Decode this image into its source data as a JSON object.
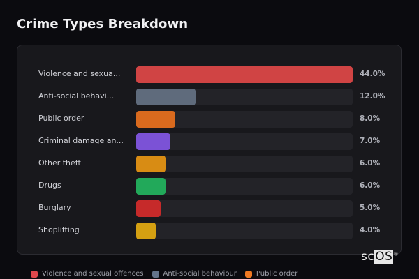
{
  "title": "Crime Types Breakdown",
  "chart_data": {
    "type": "bar",
    "orientation": "horizontal",
    "title": "Crime Types Breakdown",
    "categories": [
      "Violence and sexual offences",
      "Anti-social behaviour",
      "Public order",
      "Criminal damage and arson",
      "Other theft",
      "Drugs",
      "Burglary",
      "Shoplifting"
    ],
    "display_labels": [
      "Violence and sexua...",
      "Anti-social behavi...",
      "Public order",
      "Criminal damage an...",
      "Other theft",
      "Drugs",
      "Burglary",
      "Shoplifting"
    ],
    "values": [
      44.0,
      12.0,
      8.0,
      7.0,
      6.0,
      6.0,
      5.0,
      4.0
    ],
    "value_labels": [
      "44.0%",
      "12.0%",
      "8.0%",
      "7.0%",
      "6.0%",
      "6.0%",
      "5.0%",
      "4.0%"
    ],
    "colors": [
      "#d04444",
      "#5f6b7c",
      "#d96a1e",
      "#7b52d6",
      "#d88c14",
      "#22a95a",
      "#c62a2a",
      "#d4a012"
    ],
    "xlim": [
      0,
      44
    ]
  },
  "legend": [
    {
      "label": "Violence and sexual offences",
      "color": "#e0474c"
    },
    {
      "label": "Anti-social behaviour",
      "color": "#64748b"
    },
    {
      "label": "Public order",
      "color": "#f07a22"
    }
  ],
  "watermark": {
    "prefix": "sc",
    "highlight": "OS",
    "mark": "®"
  }
}
